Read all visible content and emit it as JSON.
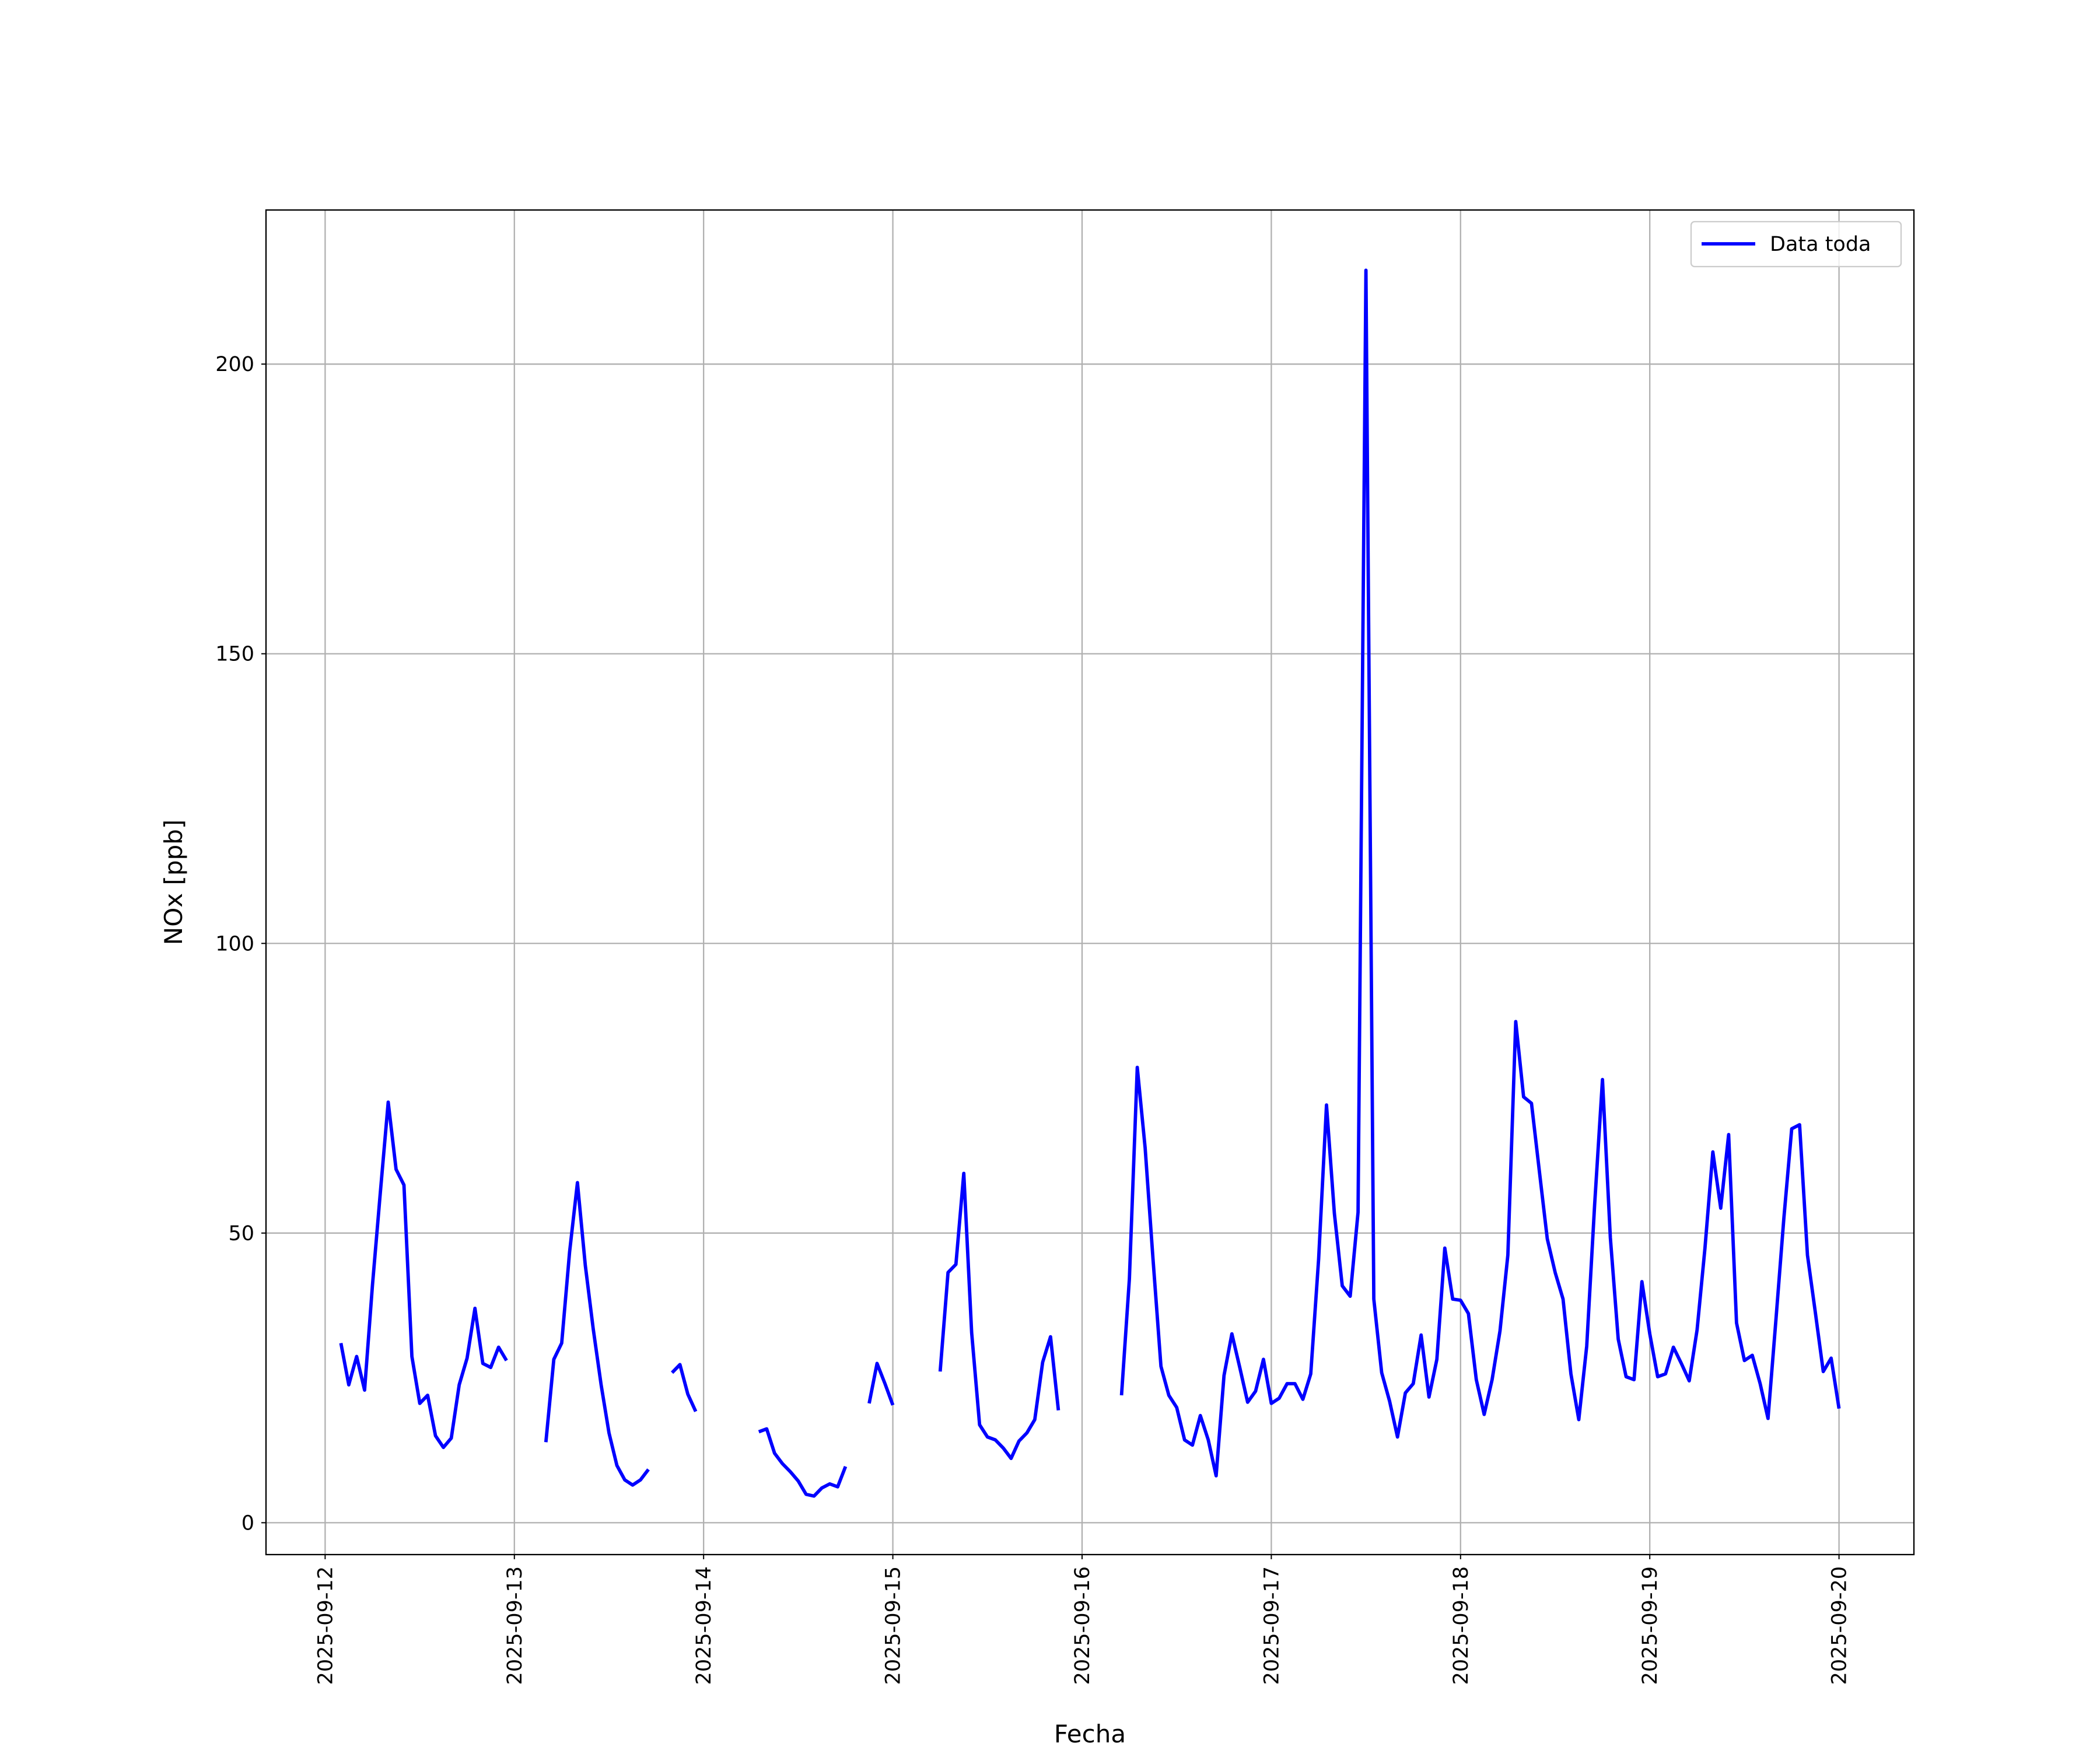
{
  "chart_data": {
    "type": "line",
    "xlabel": "Fecha",
    "ylabel": "NOx [ppb]",
    "x": [
      "2025-09-12 02:00",
      "2025-09-12 03:00",
      "2025-09-12 04:00",
      "2025-09-12 05:00",
      "2025-09-12 06:00",
      "2025-09-12 07:00",
      "2025-09-12 08:00",
      "2025-09-12 09:00",
      "2025-09-12 10:00",
      "2025-09-12 11:00",
      "2025-09-12 12:00",
      "2025-09-12 13:00",
      "2025-09-12 14:00",
      "2025-09-12 15:00",
      "2025-09-12 16:00",
      "2025-09-12 17:00",
      "2025-09-12 18:00",
      "2025-09-12 19:00",
      "2025-09-12 20:00",
      "2025-09-12 21:00",
      "2025-09-12 22:00",
      "2025-09-12 23:00",
      "2025-09-13 00:00",
      "2025-09-13 04:00",
      "2025-09-13 05:00",
      "2025-09-13 06:00",
      "2025-09-13 07:00",
      "2025-09-13 08:00",
      "2025-09-13 09:00",
      "2025-09-13 10:00",
      "2025-09-13 11:00",
      "2025-09-13 12:00",
      "2025-09-13 13:00",
      "2025-09-13 14:00",
      "2025-09-13 15:00",
      "2025-09-13 16:00",
      "2025-09-13 17:00",
      "2025-09-13 18:00",
      "2025-09-13 20:00",
      "2025-09-13 21:00",
      "2025-09-13 22:00",
      "2025-09-13 23:00",
      "2025-09-14 00:00",
      "2025-09-14 07:00",
      "2025-09-14 08:00",
      "2025-09-14 09:00",
      "2025-09-14 10:00",
      "2025-09-14 11:00",
      "2025-09-14 12:00",
      "2025-09-14 13:00",
      "2025-09-14 14:00",
      "2025-09-14 15:00",
      "2025-09-14 16:00",
      "2025-09-14 17:00",
      "2025-09-14 18:00",
      "2025-09-14 19:00",
      "2025-09-14 21:00",
      "2025-09-14 22:00",
      "2025-09-14 23:00",
      "2025-09-15 00:00",
      "2025-09-15 01:00",
      "2025-09-15 06:00",
      "2025-09-15 07:00",
      "2025-09-15 08:00",
      "2025-09-15 09:00",
      "2025-09-15 10:00",
      "2025-09-15 11:00",
      "2025-09-15 12:00",
      "2025-09-15 13:00",
      "2025-09-15 14:00",
      "2025-09-15 15:00",
      "2025-09-15 16:00",
      "2025-09-15 17:00",
      "2025-09-15 18:00",
      "2025-09-15 19:00",
      "2025-09-15 20:00",
      "2025-09-15 21:00",
      "2025-09-15 22:00",
      "2025-09-16 05:00",
      "2025-09-16 06:00",
      "2025-09-16 07:00",
      "2025-09-16 08:00",
      "2025-09-16 09:00",
      "2025-09-16 10:00",
      "2025-09-16 11:00",
      "2025-09-16 12:00",
      "2025-09-16 13:00",
      "2025-09-16 14:00",
      "2025-09-16 15:00",
      "2025-09-16 16:00",
      "2025-09-16 17:00",
      "2025-09-16 18:00",
      "2025-09-16 19:00",
      "2025-09-16 20:00",
      "2025-09-16 21:00",
      "2025-09-16 22:00",
      "2025-09-16 23:00",
      "2025-09-17 00:00",
      "2025-09-17 01:00",
      "2025-09-17 02:00",
      "2025-09-17 03:00",
      "2025-09-17 04:00",
      "2025-09-17 05:00",
      "2025-09-17 06:00",
      "2025-09-17 07:00",
      "2025-09-17 08:00",
      "2025-09-17 09:00",
      "2025-09-17 10:00",
      "2025-09-17 11:00",
      "2025-09-17 12:00",
      "2025-09-17 13:00",
      "2025-09-17 14:00",
      "2025-09-17 15:00",
      "2025-09-17 16:00",
      "2025-09-17 17:00",
      "2025-09-17 18:00",
      "2025-09-17 19:00",
      "2025-09-17 20:00",
      "2025-09-17 21:00",
      "2025-09-17 22:00",
      "2025-09-17 23:00",
      "2025-09-18 00:00",
      "2025-09-18 01:00",
      "2025-09-18 02:00",
      "2025-09-18 03:00",
      "2025-09-18 04:00",
      "2025-09-18 05:00",
      "2025-09-18 06:00",
      "2025-09-18 07:00",
      "2025-09-18 08:00",
      "2025-09-18 09:00",
      "2025-09-18 10:00",
      "2025-09-18 11:00",
      "2025-09-18 12:00",
      "2025-09-18 13:00",
      "2025-09-18 14:00",
      "2025-09-18 15:00",
      "2025-09-18 16:00",
      "2025-09-18 17:00",
      "2025-09-18 18:00",
      "2025-09-18 19:00",
      "2025-09-18 20:00",
      "2025-09-18 21:00",
      "2025-09-18 22:00",
      "2025-09-18 23:00",
      "2025-09-19 00:00",
      "2025-09-19 01:00",
      "2025-09-19 02:00",
      "2025-09-19 03:00",
      "2025-09-19 04:00",
      "2025-09-19 05:00",
      "2025-09-19 06:00",
      "2025-09-19 07:00",
      "2025-09-19 08:00",
      "2025-09-19 09:00",
      "2025-09-19 10:00",
      "2025-09-19 11:00",
      "2025-09-19 12:00",
      "2025-09-19 13:00",
      "2025-09-19 14:00",
      "2025-09-19 15:00",
      "2025-09-19 16:00",
      "2025-09-19 17:00",
      "2025-09-19 18:00",
      "2025-09-19 19:00",
      "2025-09-19 20:00",
      "2025-09-19 21:00",
      "2025-09-19 22:00",
      "2025-09-19 23:00",
      "2025-09-20 00:00"
    ],
    "series": [
      {
        "name": "Data toda",
        "color": "#0000ff",
        "values": [
          31,
          23.8,
          28.7,
          22.9,
          41,
          57,
          72.6,
          61,
          58.3,
          28.7,
          20.6,
          22,
          15,
          13,
          14.6,
          23.8,
          28.4,
          37,
          27.5,
          26.8,
          30.3,
          28,
          null,
          13.9,
          28.2,
          31,
          46.7,
          58.7,
          44.4,
          33.5,
          23.8,
          15.5,
          9.9,
          7.4,
          6.5,
          7.4,
          9.2,
          null,
          25.9,
          27.3,
          22.2,
          19.2,
          null,
          15.7,
          16.2,
          12,
          10.2,
          8.8,
          7.2,
          4.9,
          4.6,
          6,
          6.7,
          6.2,
          9.7,
          null,
          20.6,
          27.5,
          24,
          20.3,
          null,
          26.1,
          43.2,
          44.6,
          60.3,
          32.8,
          16.9,
          14.8,
          14.3,
          12.9,
          11.1,
          14.1,
          15.5,
          17.8,
          27.7,
          32.1,
          19.4,
          null,
          22,
          42.1,
          78.6,
          64.7,
          45.5,
          27,
          22,
          19.9,
          14.3,
          13.4,
          18.5,
          14.3,
          8.1,
          25.4,
          32.6,
          26.8,
          20.8,
          22.7,
          28.2,
          20.6,
          21.5,
          24,
          24,
          21.3,
          25.7,
          45.5,
          72.1,
          53.4,
          40.9,
          39.1,
          53.6,
          216.2,
          38.6,
          25.9,
          21,
          14.8,
          22.4,
          24,
          32.4,
          21.7,
          28.2,
          47.4,
          38.6,
          38.4,
          36.1,
          24.7,
          18.7,
          24.7,
          33.1,
          46.2,
          86.5,
          73.5,
          72.4,
          60.6,
          49,
          43.2,
          38.6,
          25.7,
          17.8,
          30.5,
          54.8,
          76.5,
          49.2,
          31.7,
          25.2,
          24.7,
          41.6,
          32.6,
          25.2,
          25.7,
          30.3,
          27.5,
          24.5,
          33.3,
          47.4,
          64,
          54.3,
          67,
          34.5,
          28,
          28.9,
          24,
          18,
          35.1,
          52.5,
          68,
          68.7,
          46.2,
          36.3,
          26.1,
          28.4,
          19.7
        ]
      }
    ],
    "xlim": [
      "2025-09-11 16:30",
      "2025-09-20 09:30"
    ],
    "xticks": [
      "2025-09-12",
      "2025-09-13",
      "2025-09-14",
      "2025-09-15",
      "2025-09-16",
      "2025-09-17",
      "2025-09-18",
      "2025-09-19",
      "2025-09-20"
    ],
    "ylim": [
      -5.5,
      226.6
    ],
    "yticks": [
      0,
      50,
      100,
      150,
      200
    ],
    "grid": true,
    "legend": "upper right"
  }
}
